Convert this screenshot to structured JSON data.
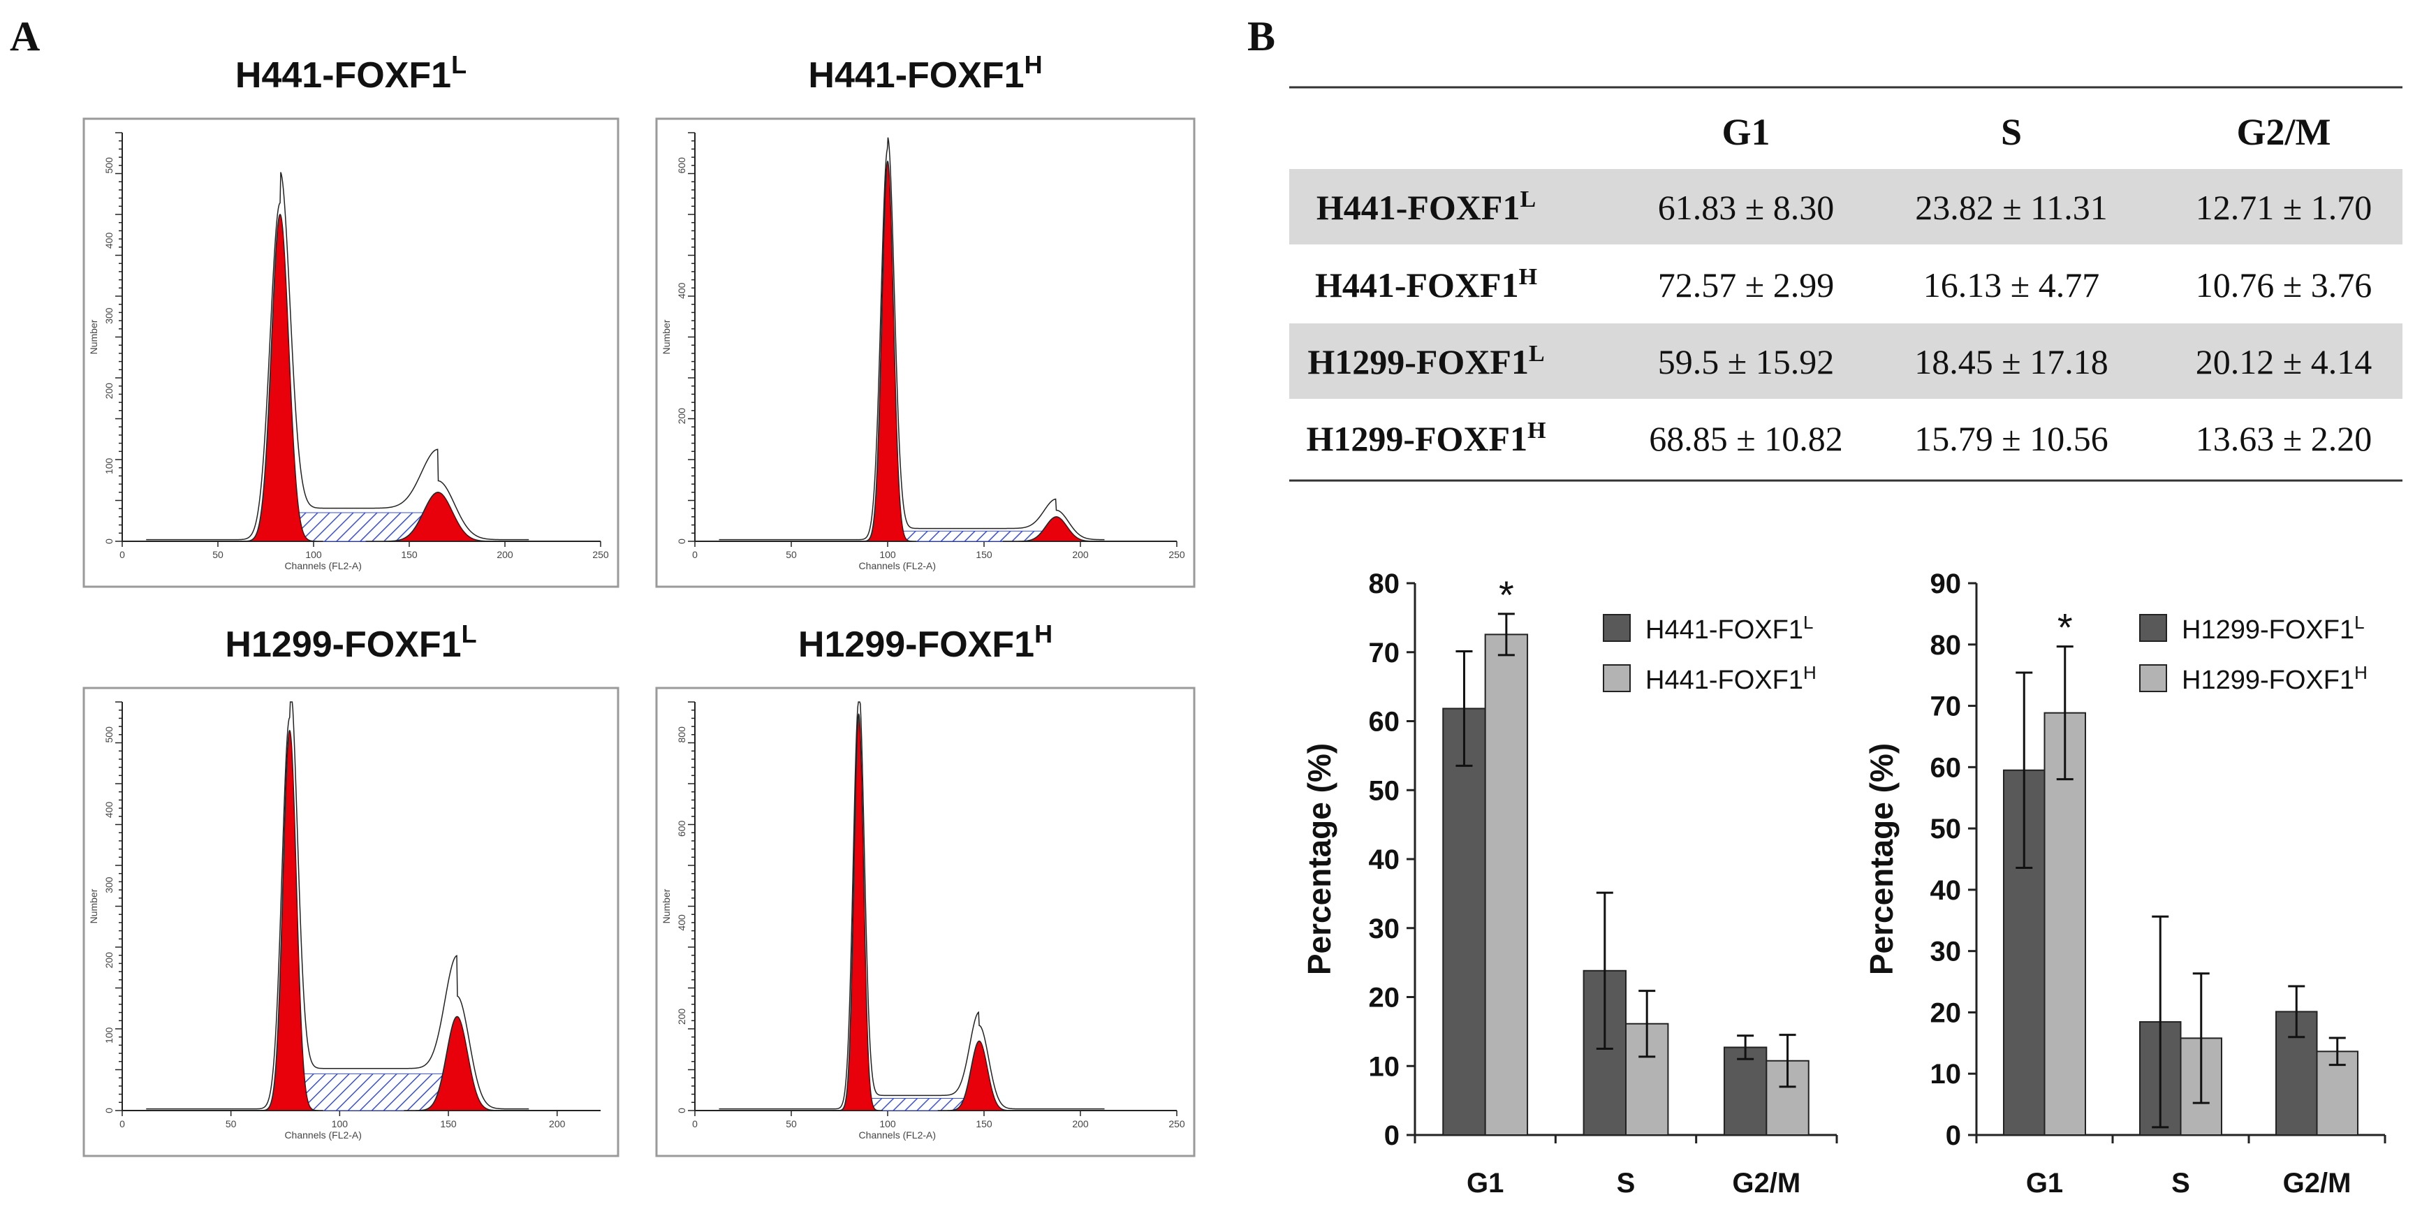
{
  "panel_labels": {
    "a": "A",
    "b": "B"
  },
  "colors": {
    "dark_bar": "#595959",
    "light_bar": "#b3b3b3",
    "peak_red": "#e8000b",
    "hatch_blue": "#3a4fd6",
    "table_shade": "#d9d9d9"
  },
  "histograms": [
    {
      "title": "H441-FOXF1",
      "sup": "L",
      "y_label": "Number",
      "x_label": "Channels (FL2-A)",
      "x_ticks": [
        "0",
        "50",
        "100",
        "150",
        "200",
        "250"
      ],
      "y_ticks": [
        "0",
        "100",
        "200",
        "300",
        "400",
        "500"
      ]
    },
    {
      "title": "H441-FOXF1",
      "sup": "H",
      "y_label": "Number",
      "x_label": "Channels (FL2-A)",
      "x_ticks": [
        "0",
        "50",
        "100",
        "150",
        "200",
        "250"
      ],
      "y_ticks": [
        "0",
        "200",
        "400",
        "600"
      ]
    },
    {
      "title": "H1299-FOXF1",
      "sup": "L",
      "y_label": "Number",
      "x_label": "Channels (FL2-A)",
      "x_ticks": [
        "0",
        "50",
        "100",
        "150",
        "200"
      ],
      "y_ticks": [
        "0",
        "100",
        "200",
        "300",
        "400",
        "500"
      ]
    },
    {
      "title": "H1299-FOXF1",
      "sup": "H",
      "y_label": "Number",
      "x_label": "Channels (FL2-A)",
      "x_ticks": [
        "0",
        "50",
        "100",
        "150",
        "200",
        "250"
      ],
      "y_ticks": [
        "0",
        "200",
        "400",
        "600",
        "800"
      ]
    }
  ],
  "table": {
    "headers": [
      "G1",
      "S",
      "G2/M"
    ],
    "rows": [
      {
        "label": "H441-FOXF1",
        "sup": "L",
        "values": [
          "61.83 ± 8.30",
          "23.82 ± 11.31",
          "12.71 ± 1.70"
        ]
      },
      {
        "label": "H441-FOXF1",
        "sup": "H",
        "values": [
          "72.57 ± 2.99",
          "16.13 ± 4.77",
          "10.76 ± 3.76"
        ]
      },
      {
        "label": "H1299-FOXF1",
        "sup": "L",
        "values": [
          "59.5 ± 15.92",
          "18.45 ± 17.18",
          "20.12 ± 4.14"
        ]
      },
      {
        "label": "H1299-FOXF1",
        "sup": "H",
        "values": [
          "68.85 ± 10.82",
          "15.79 ± 10.56",
          "13.63 ± 2.20"
        ]
      }
    ]
  },
  "chart_data": [
    {
      "type": "bar",
      "categories": [
        "G1",
        "S",
        "G2/M"
      ],
      "series": [
        {
          "name": "H441-FOXF1",
          "sup": "L",
          "values": [
            61.83,
            23.82,
            12.71
          ],
          "errors": [
            8.3,
            11.31,
            1.7
          ]
        },
        {
          "name": "H441-FOXF1",
          "sup": "H",
          "values": [
            72.57,
            16.13,
            10.76
          ],
          "errors": [
            2.99,
            4.77,
            3.76
          ]
        }
      ],
      "ylabel": "Percentage (%)",
      "ylim": [
        0,
        80
      ],
      "yticks": [
        "0",
        "10",
        "20",
        "30",
        "40",
        "50",
        "60",
        "70",
        "80"
      ],
      "significance": {
        "category": "G1",
        "label": "*"
      },
      "legend": "top-right"
    },
    {
      "type": "bar",
      "categories": [
        "G1",
        "S",
        "G2/M"
      ],
      "series": [
        {
          "name": "H1299-FOXF1",
          "sup": "L",
          "values": [
            59.5,
            18.45,
            20.12
          ],
          "errors": [
            15.92,
            17.18,
            4.14
          ]
        },
        {
          "name": "H1299-FOXF1",
          "sup": "H",
          "values": [
            68.85,
            15.79,
            13.63
          ],
          "errors": [
            10.82,
            10.56,
            2.2
          ]
        }
      ],
      "ylabel": "Percentage (%)",
      "ylim": [
        0,
        90
      ],
      "yticks": [
        "0",
        "10",
        "20",
        "30",
        "40",
        "50",
        "60",
        "70",
        "80",
        "90"
      ],
      "significance": {
        "category": "G1",
        "label": "*"
      },
      "legend": "top-right"
    }
  ]
}
